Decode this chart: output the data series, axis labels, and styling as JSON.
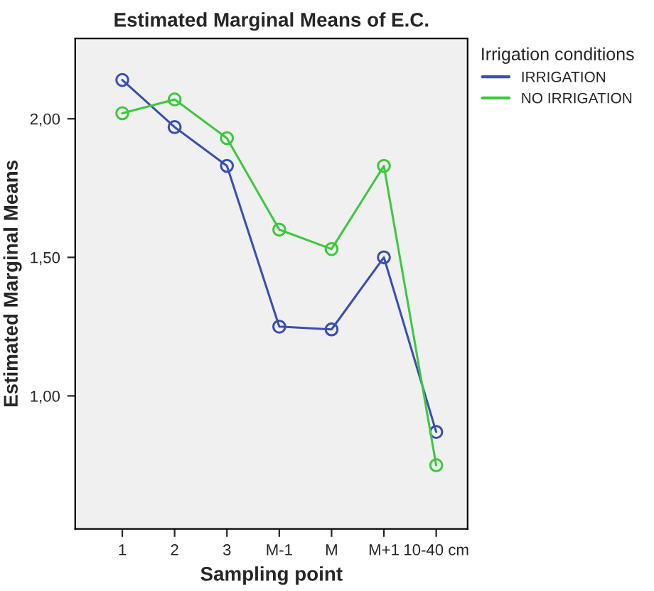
{
  "chart_data": {
    "type": "line",
    "title": "Estimated Marginal Means of E.C.",
    "xlabel": "Sampling point",
    "ylabel": "Estimated Marginal Means",
    "legend_title": "Irrigation conditions",
    "categories": [
      "1",
      "2",
      "3",
      "M-1",
      "M",
      "M+1",
      "10-40 cm"
    ],
    "series": [
      {
        "name": "IRRIGATION",
        "color": "#3a4fb0",
        "values": [
          2.14,
          1.97,
          1.83,
          1.25,
          1.24,
          1.5,
          0.87
        ]
      },
      {
        "name": "NO IRRIGATION",
        "color": "#3ec83e",
        "values": [
          2.02,
          2.07,
          1.93,
          1.6,
          1.53,
          1.83,
          0.75
        ]
      }
    ],
    "ylim": [
      0.52,
      2.29
    ],
    "yticks": [
      {
        "value": 1.0,
        "label": "1,00"
      },
      {
        "value": 1.5,
        "label": "1,50"
      },
      {
        "value": 2.0,
        "label": "2,00"
      }
    ],
    "grid": false,
    "legend": "right",
    "marker": "circle",
    "line_style": "solid"
  }
}
